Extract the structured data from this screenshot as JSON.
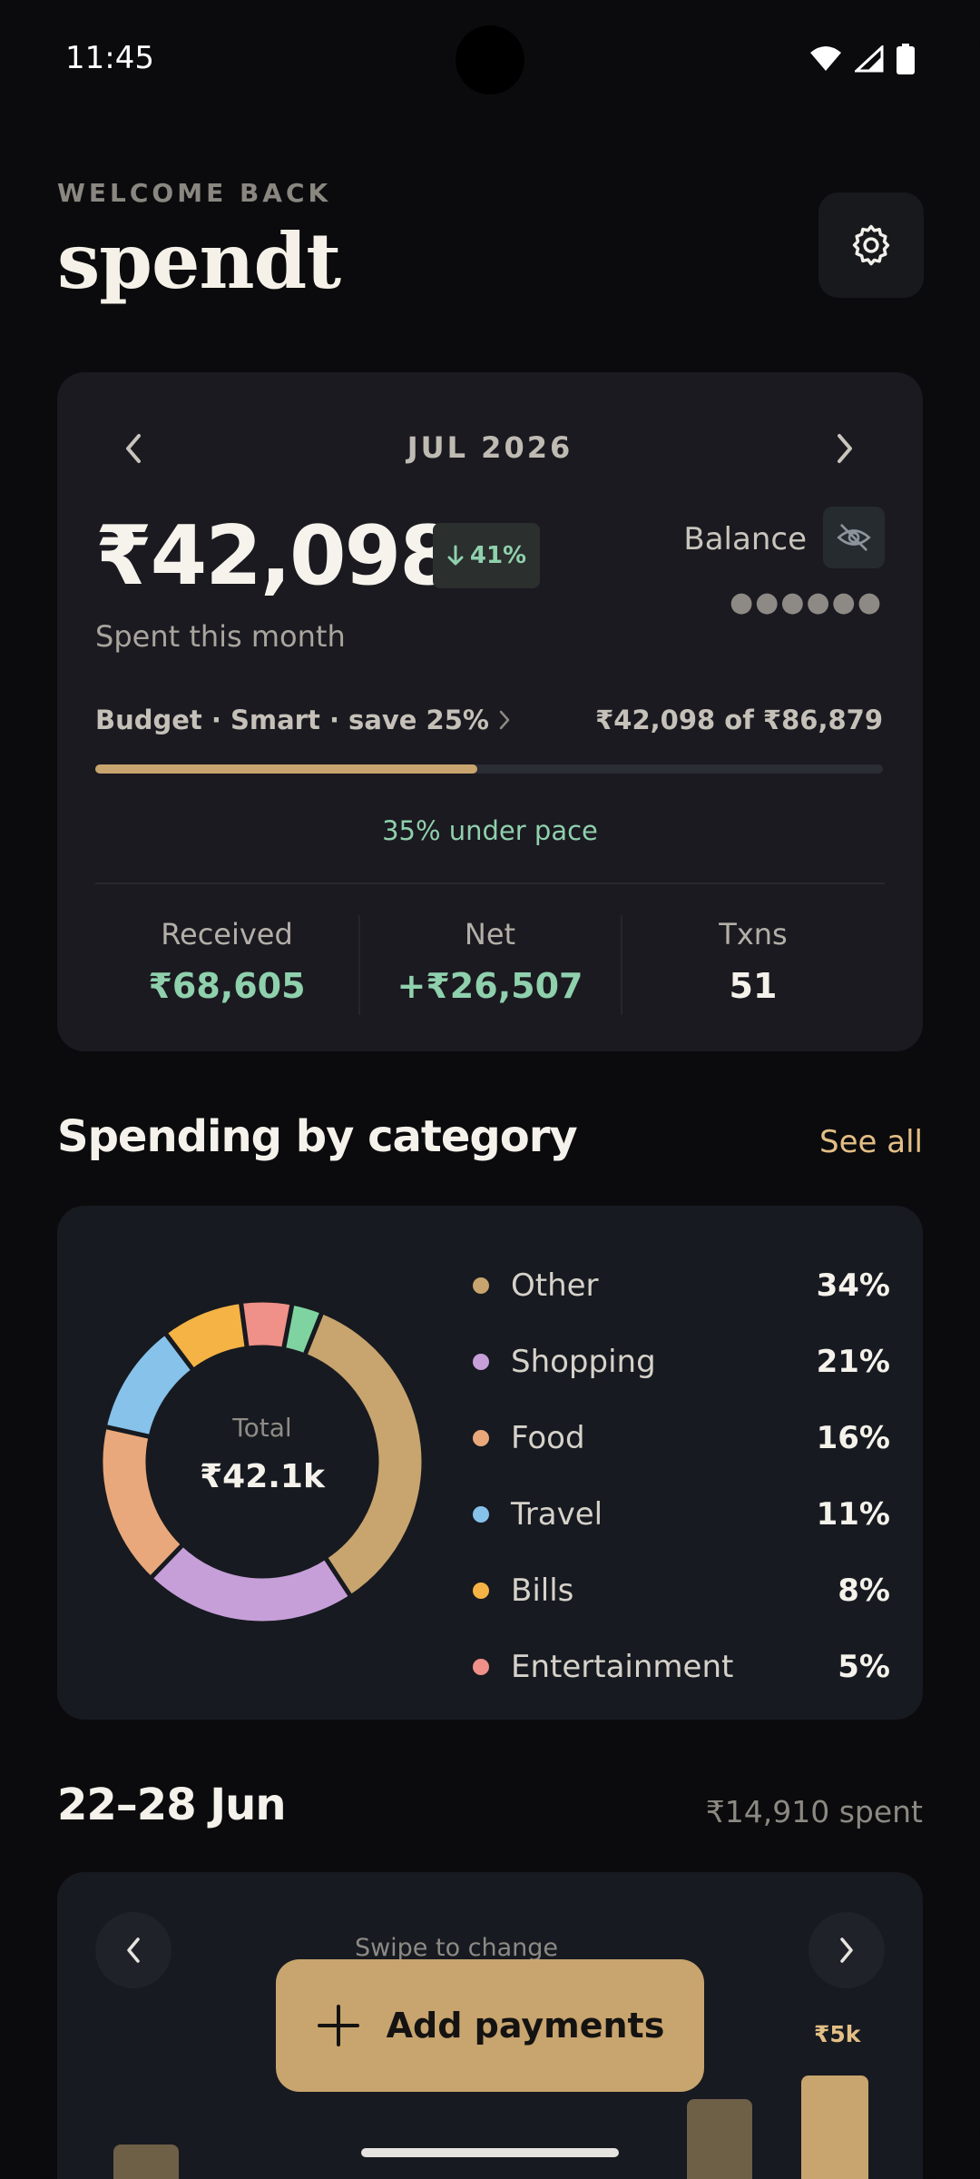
{
  "status_bar": {
    "time": "11:45"
  },
  "header": {
    "welcome": "WELCOME BACK",
    "title": "spendt"
  },
  "summary": {
    "month": "JUL 2026",
    "amount": "₹42,098",
    "delta": "41%",
    "spent_label": "Spent this month",
    "balance_label": "Balance",
    "balance_mask": "●●●●●●",
    "budget_label": "Budget · Smart · save 25%",
    "budget_amount": "₹42,098 of ₹86,879",
    "budget_progress": 0.485,
    "pace": "35% under pace",
    "stats": [
      {
        "label": "Received",
        "value": "₹68,605",
        "color": "#8fd0ad"
      },
      {
        "label": "Net",
        "value": "+₹26,507",
        "color": "#8fd0ad"
      },
      {
        "label": "Txns",
        "value": "51",
        "color": "#f5f2eb"
      }
    ]
  },
  "categories": {
    "title": "Spending by category",
    "see_all": "See all",
    "total_label": "Total",
    "total_value": "₹42.1k",
    "items": [
      {
        "name": "Other",
        "pct": "34%",
        "share": 34,
        "color": "#c8a46e"
      },
      {
        "name": "Shopping",
        "pct": "21%",
        "share": 21,
        "color": "#c69fd9"
      },
      {
        "name": "Food",
        "pct": "16%",
        "share": 16,
        "color": "#e9a87b"
      },
      {
        "name": "Travel",
        "pct": "11%",
        "share": 11,
        "color": "#86c2ea"
      },
      {
        "name": "Bills",
        "pct": "8%",
        "share": 8,
        "color": "#f4b344"
      },
      {
        "name": "Entertainment",
        "pct": "5%",
        "share": 5,
        "color": "#ef9089"
      },
      {
        "name": "",
        "pct": "",
        "share": 3,
        "color": "#7fd3a1"
      }
    ]
  },
  "week": {
    "title": "22–28 Jun",
    "spent": "₹14,910 spent",
    "hint": "Swipe to change",
    "peak_label": "₹5k"
  },
  "fab": {
    "label": "Add payments"
  }
}
